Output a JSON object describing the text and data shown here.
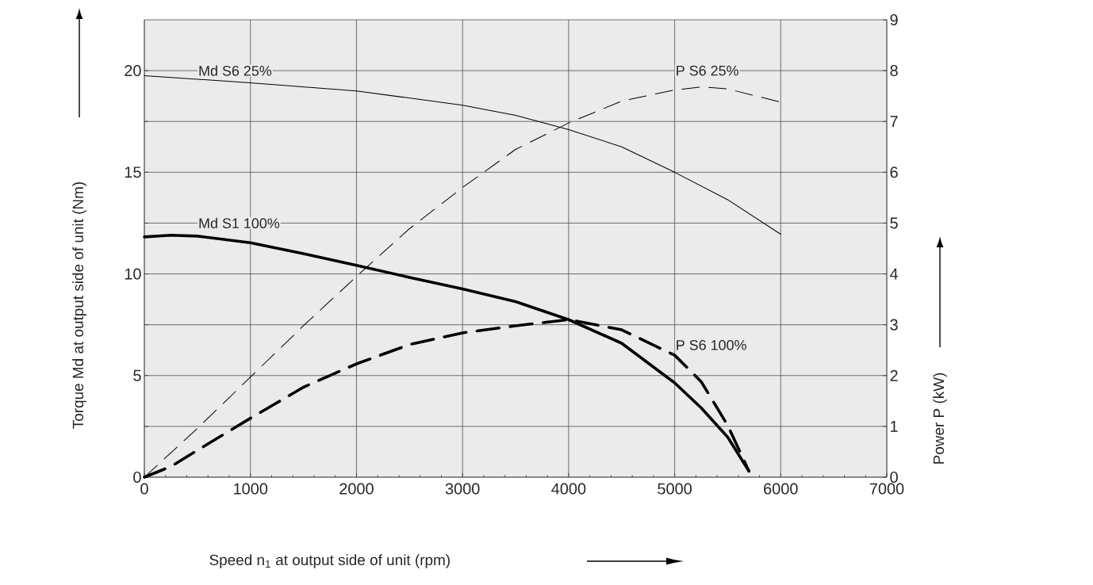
{
  "chart_data": {
    "type": "line",
    "xlabel": "Speed n$_{1}$ at output side of unit (rpm)",
    "ylabel": "Torque Md at output side of unit (Nm)",
    "y2label": "Power P  (kW)",
    "xlim": [
      0,
      7000
    ],
    "xticks": [
      0,
      1000,
      2000,
      3000,
      4000,
      5000,
      6000,
      7000
    ],
    "ylim": [
      0,
      22.5
    ],
    "yticks": [
      0,
      {
        "value": 2.5,
        "label": null
      },
      5,
      {
        "value": 7.5,
        "label": null
      },
      10,
      {
        "value": 12.5,
        "label": null
      },
      15,
      {
        "value": 17.5,
        "label": null
      },
      20
    ],
    "y2lim": [
      0,
      9
    ],
    "y2ticks": [
      0,
      1,
      2,
      3,
      4,
      5,
      6,
      7,
      8,
      9
    ],
    "grid": true,
    "series": [
      {
        "name": "Md S6 25%",
        "color": "#000000",
        "line_style": "solid",
        "x": [
          0,
          1000,
          2000,
          3000,
          3500,
          4000,
          4500,
          5000,
          5500,
          6000
        ],
        "values": [
          19.75,
          19.4,
          19.0,
          18.3,
          17.8,
          17.1,
          16.25,
          15.0,
          13.65,
          11.95
        ]
      },
      {
        "name": "Md S1 100%",
        "color": "#000000",
        "line_style": "solid",
        "x": [
          0,
          250,
          500,
          1000,
          1500,
          2000,
          2500,
          3000,
          3500,
          4000,
          4500,
          5000,
          5250,
          5500,
          5700
        ],
        "values": [
          11.82,
          11.9,
          11.86,
          11.53,
          11.0,
          10.42,
          9.83,
          9.26,
          8.64,
          7.75,
          6.59,
          4.64,
          3.41,
          1.97,
          0.3
        ]
      },
      {
        "name": "P S6 25%",
        "color": "#000000",
        "line_style": "dashed",
        "axis": "y2",
        "x": [
          0,
          500,
          1000,
          1500,
          2000,
          2500,
          3000,
          3500,
          4000,
          4500,
          5000,
          5250,
          5500,
          6000
        ],
        "values": [
          0,
          0.96,
          1.97,
          2.98,
          3.95,
          4.89,
          5.7,
          6.45,
          6.97,
          7.4,
          7.62,
          7.68,
          7.64,
          7.38
        ]
      },
      {
        "name": "P S6 100%",
        "color": "#000000",
        "line_style": "dashed",
        "axis": "y2",
        "x": [
          0,
          250,
          500,
          1000,
          1500,
          2000,
          2500,
          3000,
          3500,
          4000,
          4500,
          5000,
          5250,
          5500,
          5700
        ],
        "values": [
          0,
          0.21,
          0.53,
          1.16,
          1.77,
          2.23,
          2.61,
          2.84,
          2.98,
          3.1,
          2.9,
          2.4,
          1.88,
          1.02,
          0.12
        ]
      }
    ]
  }
}
